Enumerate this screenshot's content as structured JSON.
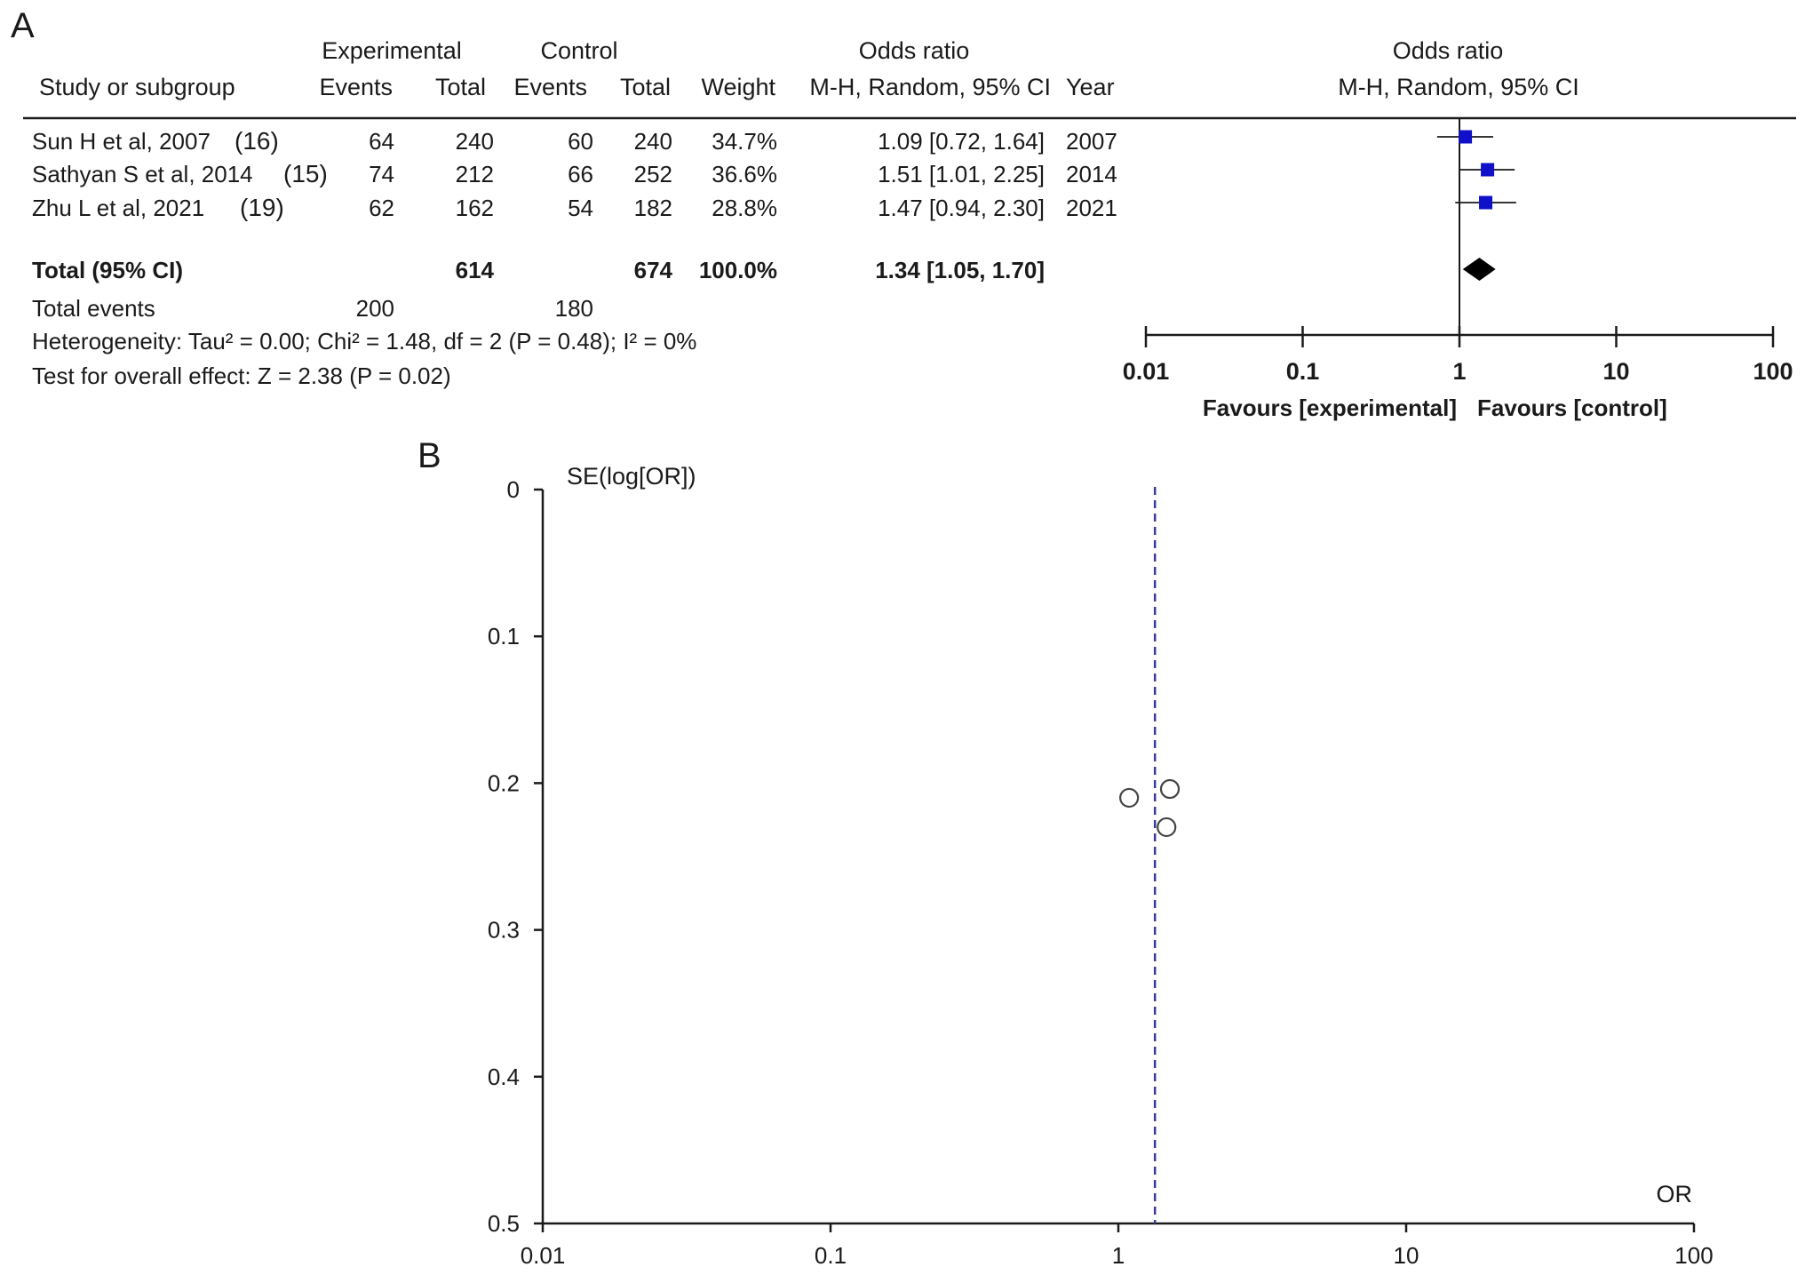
{
  "panel_a": {
    "label": "A",
    "headers": {
      "experimental": "Experimental",
      "control": "Control",
      "odds_ratio": "Odds ratio",
      "odds_ratio_plot": "Odds ratio",
      "study": "Study or subgroup",
      "exp_events": "Events",
      "exp_total": "Total",
      "ctl_events": "Events",
      "ctl_total": "Total",
      "weight": "Weight",
      "method": "M-H, Random, 95% CI",
      "year": "Year",
      "method_plot": "M-H, Random, 95% CI"
    },
    "studies": [
      {
        "study": "Sun H et al, 2007",
        "ref": "(16)",
        "exp_events": "64",
        "exp_total": "240",
        "ctl_events": "60",
        "ctl_total": "240",
        "weight": "34.7%",
        "or_text": "1.09 [0.72, 1.64]",
        "year": "2007",
        "or": 1.09,
        "lo": 0.72,
        "hi": 1.64
      },
      {
        "study": "Sathyan S et al, 2014",
        "ref": "(15)",
        "exp_events": "74",
        "exp_total": "212",
        "ctl_events": "66",
        "ctl_total": "252",
        "weight": "36.6%",
        "or_text": "1.51 [1.01, 2.25]",
        "year": "2014",
        "or": 1.51,
        "lo": 1.01,
        "hi": 2.25
      },
      {
        "study": "Zhu L et al, 2021",
        "ref": "(19)",
        "exp_events": "62",
        "exp_total": "162",
        "ctl_events": "54",
        "ctl_total": "182",
        "weight": "28.8%",
        "or_text": "1.47 [0.94, 2.30]",
        "year": "2021",
        "or": 1.47,
        "lo": 0.94,
        "hi": 2.3
      }
    ],
    "total": {
      "label": "Total (95% CI)",
      "exp_total": "614",
      "ctl_total": "674",
      "weight": "100.0%",
      "or_text": "1.34 [1.05, 1.70]",
      "or": 1.34,
      "lo": 1.05,
      "hi": 1.7
    },
    "total_events": {
      "label": "Total events",
      "exp": "200",
      "ctl": "180"
    },
    "heterogeneity": "Heterogeneity: Tau² = 0.00; Chi² = 1.48, df = 2 (P = 0.48); I² = 0%",
    "overall_effect": "Test for overall effect: Z = 2.38 (P = 0.02)",
    "favours_left": "Favours [experimental]",
    "favours_right": "Favours [control]"
  },
  "panel_b": {
    "label": "B"
  },
  "colors": {
    "square": "#1010c8",
    "dashed_line": "#3a3a9a",
    "text": "#1a1a1a"
  },
  "chart_data": [
    {
      "type": "forest",
      "scale": "log",
      "xlim": [
        0.01,
        100
      ],
      "ticks": [
        0.01,
        0.1,
        1,
        10,
        100
      ],
      "tick_labels": [
        "0.01",
        "0.1",
        "1",
        "10",
        "100"
      ],
      "title": "Odds ratio",
      "subtitle": "M-H, Random, 95% CI",
      "categories": [
        "Sun H et al, 2007",
        "Sathyan S et al, 2014",
        "Zhu L et al, 2021"
      ],
      "values": [
        1.09,
        1.51,
        1.47
      ],
      "ci_low": [
        0.72,
        1.01,
        0.94
      ],
      "ci_high": [
        1.64,
        2.25,
        2.3
      ],
      "pooled": {
        "value": 1.34,
        "ci_low": 1.05,
        "ci_high": 1.7
      }
    },
    {
      "type": "scatter",
      "xlabel": "OR",
      "ylabel": "SE(log[OR])",
      "xscale": "log",
      "xlim": [
        0.01,
        100
      ],
      "ylim": [
        0,
        0.5
      ],
      "yinverted": true,
      "x_ticks": [
        0.01,
        0.1,
        1,
        10,
        100
      ],
      "x_tick_labels": [
        "0.01",
        "0.1",
        "1",
        "10",
        "100"
      ],
      "y_ticks": [
        0,
        0.1,
        0.2,
        0.3,
        0.4,
        0.5
      ],
      "y_tick_labels": [
        "0",
        "0.1",
        "0.2",
        "0.3",
        "0.4",
        "0.5"
      ],
      "points": [
        {
          "x": 1.09,
          "y": 0.21
        },
        {
          "x": 1.51,
          "y": 0.204
        },
        {
          "x": 1.47,
          "y": 0.23
        }
      ],
      "reference_line": 1.34
    }
  ]
}
